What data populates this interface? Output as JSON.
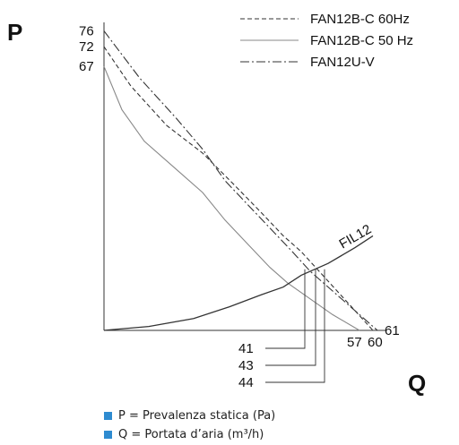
{
  "chart_data": {
    "type": "line",
    "xlabel": "Q",
    "ylabel": "P",
    "y_ticks": [
      "76",
      "72",
      "67"
    ],
    "x_ticks": [
      "57",
      "60",
      "61"
    ],
    "operating_points": [
      "41",
      "43",
      "44"
    ],
    "series": [
      {
        "name": "FAN12B-C 60Hz",
        "style": "dashed",
        "points": [
          [
            0,
            72
          ],
          [
            6,
            62
          ],
          [
            14,
            52
          ],
          [
            22,
            45
          ],
          [
            29,
            37
          ],
          [
            35,
            30
          ],
          [
            40,
            24
          ],
          [
            44,
            20
          ],
          [
            48,
            15
          ],
          [
            52,
            10
          ],
          [
            56,
            5
          ],
          [
            60,
            0
          ]
        ]
      },
      {
        "name": "FAN12B-C 50 Hz",
        "style": "solid",
        "points": [
          [
            0,
            67
          ],
          [
            4,
            56
          ],
          [
            9,
            48
          ],
          [
            16,
            41
          ],
          [
            22,
            35
          ],
          [
            27,
            28
          ],
          [
            32,
            22
          ],
          [
            37,
            16
          ],
          [
            41,
            12
          ],
          [
            46,
            8
          ],
          [
            51,
            4
          ],
          [
            57,
            0
          ]
        ]
      },
      {
        "name": "FAN12U-V",
        "style": "dashdot",
        "points": [
          [
            0,
            76
          ],
          [
            8,
            64
          ],
          [
            16,
            54
          ],
          [
            22,
            46
          ],
          [
            27,
            38
          ],
          [
            32,
            32
          ],
          [
            37,
            26
          ],
          [
            42,
            20
          ],
          [
            46,
            15
          ],
          [
            51,
            10
          ],
          [
            56,
            5
          ],
          [
            61,
            0
          ]
        ]
      },
      {
        "name": "FIL12",
        "style": "system",
        "points": [
          [
            0,
            0
          ],
          [
            10,
            1
          ],
          [
            20,
            3
          ],
          [
            28,
            6
          ],
          [
            35,
            9
          ],
          [
            40,
            11
          ],
          [
            44,
            14
          ],
          [
            50,
            17
          ],
          [
            56,
            21
          ],
          [
            60,
            24
          ]
        ]
      }
    ],
    "legend_position": "top-right",
    "xlim": [
      0,
      64
    ],
    "ylim": [
      0,
      80
    ]
  },
  "legend": [
    {
      "label": "FAN12B-C 60Hz",
      "style": "dashed"
    },
    {
      "label": "FAN12B-C 50 Hz",
      "style": "solid"
    },
    {
      "label": "FAN12U-V",
      "style": "dashdot"
    }
  ],
  "curve_label": "FIL12",
  "notes": [
    {
      "text": "P = Prevalenza statica (Pa)"
    },
    {
      "text": "Q = Portata d’aria (m³/h)"
    }
  ],
  "colors": {
    "accent": "#2e8bd0",
    "line": "#333333",
    "solid_curve": "#888888"
  }
}
